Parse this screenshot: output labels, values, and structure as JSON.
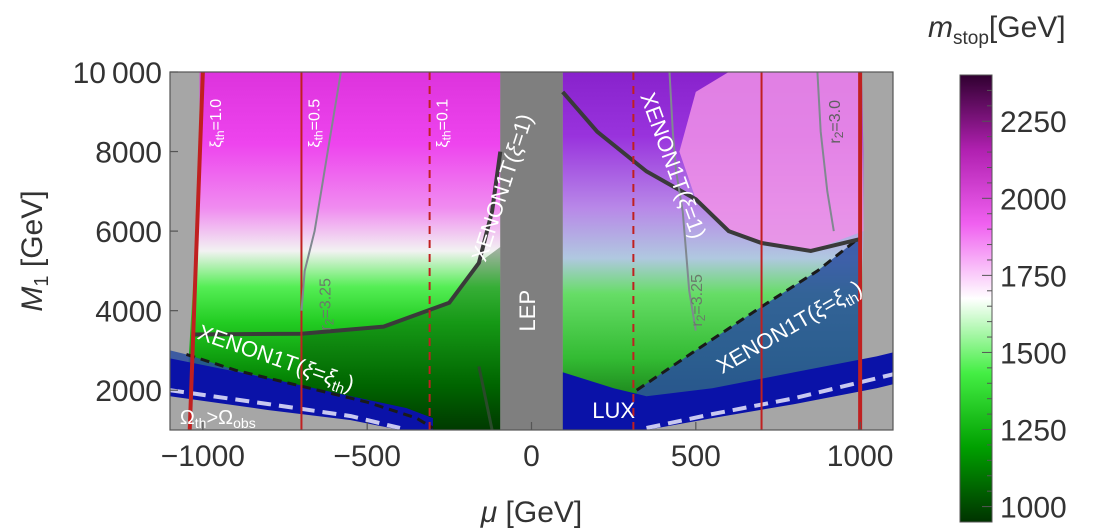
{
  "chart_data": {
    "type": "heatmap",
    "title": "",
    "xlabel": "μ [GeV]",
    "ylabel": "M₁ [GeV]",
    "xlim": [
      -1100,
      1100
    ],
    "ylim": [
      1000,
      10000
    ],
    "x_ticks": [
      -1000,
      -500,
      0,
      500,
      1000
    ],
    "x_tick_labels": [
      "−1000",
      "−500",
      "0",
      "500",
      "1000"
    ],
    "y_ticks": [
      2000,
      4000,
      6000,
      8000,
      10000
    ],
    "y_tick_labels": [
      "2000",
      "4000",
      "6000",
      "8000",
      "10 000"
    ],
    "colorbar": {
      "label": "m_stop[GeV]",
      "label_main": "m",
      "label_sub": "stop",
      "label_unit": "[GeV]",
      "range": [
        950,
        2400
      ],
      "ticks": [
        1000,
        1250,
        1500,
        1750,
        2000,
        2250
      ],
      "tick_labels": [
        "1000",
        "1250",
        "1500",
        "1750",
        "2000",
        "2250"
      ],
      "colors": [
        "#003300",
        "#00a000",
        "#44ee44",
        "#ffffff",
        "#f060f0",
        "#b020b0",
        "#300030"
      ]
    },
    "colors": {
      "excluded_gray": "#a6a6a6",
      "lep_band": "#7f7f7f",
      "lux_blue": "#0a12a8",
      "xenon_fill": "#2a4da0",
      "xi_line": "#c02020",
      "r2_line": "#808890",
      "contour": "#3a3a3a"
    },
    "regions": [
      {
        "name": "LEP",
        "x_range": [
          -95,
          95
        ]
      }
    ],
    "contours": {
      "xenon_xi1_left": [
        [
          -1030,
          3400
        ],
        [
          -700,
          3420
        ],
        [
          -450,
          3600
        ],
        [
          -250,
          4200
        ],
        [
          -160,
          5200
        ],
        [
          -120,
          6500
        ],
        [
          -95,
          8000
        ]
      ],
      "xenon_xi1_right": [
        [
          95,
          9500
        ],
        [
          200,
          8500
        ],
        [
          350,
          7500
        ],
        [
          500,
          6800
        ],
        [
          600,
          6000
        ],
        [
          700,
          5700
        ],
        [
          850,
          5500
        ],
        [
          1000,
          5800
        ]
      ],
      "xenon_xith_left": [
        [
          -1050,
          2900
        ],
        [
          -900,
          2500
        ],
        [
          -700,
          2100
        ],
        [
          -500,
          1700
        ],
        [
          -350,
          1300
        ],
        [
          -300,
          1050
        ]
      ],
      "xenon_xith_right": [
        [
          320,
          2000
        ],
        [
          500,
          3000
        ],
        [
          700,
          4100
        ],
        [
          870,
          5000
        ],
        [
          1000,
          5850
        ]
      ],
      "lux_left": [
        [
          -1100,
          2550
        ],
        [
          -800,
          2050
        ],
        [
          -550,
          1650
        ],
        [
          -380,
          1350
        ],
        [
          -300,
          1050
        ]
      ],
      "lux_right": [
        [
          95,
          2300
        ],
        [
          250,
          1900
        ],
        [
          350,
          1700
        ],
        [
          550,
          1850
        ],
        [
          800,
          2200
        ],
        [
          1050,
          2600
        ]
      ],
      "omega_boundary": [
        [
          -1100,
          1850
        ],
        [
          -800,
          1500
        ],
        [
          -550,
          1250
        ],
        [
          -400,
          1000
        ]
      ]
    },
    "xi_lines": [
      {
        "label": "ξ",
        "sub": "th",
        "value": "=1.0",
        "x": -1000
      },
      {
        "label": "ξ",
        "sub": "th",
        "value": "=0.5",
        "x": -700
      },
      {
        "label": "ξ",
        "sub": "th",
        "value": "=0.1",
        "x": -310
      }
    ],
    "xi_lines_right": [
      {
        "x": 310
      },
      {
        "x": 700
      },
      {
        "x": 1000
      }
    ],
    "r2_lines": [
      {
        "label": "r",
        "sub": "2",
        "value": "=3.25",
        "x": -665
      },
      {
        "label": "r",
        "sub": "2",
        "value": "=3.25",
        "x": 470
      },
      {
        "label": "r",
        "sub": "2",
        "value": "=3.0",
        "x": 890
      }
    ],
    "annotations": {
      "lep": "LEP",
      "lux": "LUX",
      "xenon_xi1_left": {
        "main": "XENON1T(",
        "xi": "ξ",
        "rest": "=1)"
      },
      "xenon_xi1_right": {
        "main": "XENON1T(",
        "xi": "ξ",
        "rest": "=1)"
      },
      "xenon_xith_left": {
        "main": "XENON1T(",
        "xi": "ξ",
        "mid": "=",
        "xi2": "ξ",
        "sub": "th",
        "end": ")"
      },
      "xenon_xith_right": {
        "main": "XENON1T(",
        "xi": "ξ",
        "mid": "=",
        "xi2": "ξ",
        "sub": "th",
        "end": ")"
      },
      "omega": {
        "o1": "Ω",
        "s1": "th",
        "rel": ">",
        "o2": "Ω",
        "s2": "obs"
      }
    }
  }
}
